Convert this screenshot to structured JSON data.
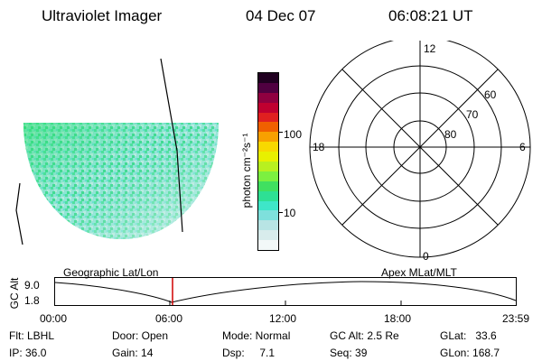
{
  "header": {
    "title": "Ultraviolet Imager",
    "date": "04 Dec 07",
    "time": "06:08:21 UT"
  },
  "colorbar": {
    "label": "photon cm⁻²s⁻¹",
    "ticks": [
      "100",
      "10"
    ],
    "colors": [
      "#f2f8f8",
      "#d8ecec",
      "#b8e4e4",
      "#7ee0dc",
      "#3ee6c8",
      "#2ee094",
      "#40e060",
      "#7cf040",
      "#b8f020",
      "#e8f000",
      "#f8d800",
      "#f8a000",
      "#f06000",
      "#e02020",
      "#c00030",
      "#900040",
      "#500040",
      "#200020"
    ]
  },
  "polar": {
    "mlt_labels": {
      "top": "12",
      "left": "18",
      "right": "6",
      "bottom": "0"
    },
    "lat_labels": [
      "60",
      "70",
      "80"
    ]
  },
  "timeline": {
    "left_label": "Geographic Lat/Lon",
    "right_label": "Apex  MLat/MLT",
    "axis_label": "GC Alt",
    "y_ticks": [
      "9.0",
      "1.8"
    ],
    "x_ticks": [
      "00:00",
      "06:00",
      "12:00",
      "18:00",
      "23:59"
    ],
    "marker_color": "#d00000"
  },
  "footer": {
    "flt": "Flt: LBHL",
    "door": "Door: Open",
    "mode": "Mode: Normal",
    "gc_alt": "GC Alt: 2.5 Re",
    "glat": "GLat:   33.6",
    "ip": "IP: 36.0",
    "gain": "Gain: 14",
    "dsp": "Dsp:     7.1",
    "seq": "Seq: 39",
    "glon": "GLon: 168.7"
  }
}
